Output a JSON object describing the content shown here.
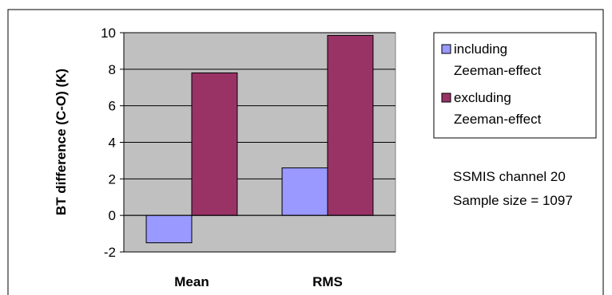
{
  "chart_data": {
    "type": "bar",
    "categories": [
      "Mean",
      "RMS"
    ],
    "series": [
      {
        "name": "including Zeeman-effect",
        "name_lines": [
          "including",
          "Zeeman-effect"
        ],
        "values": [
          -1.5,
          2.6
        ],
        "color": "#9999FF"
      },
      {
        "name": "excluding Zeeman-effect",
        "name_lines": [
          "excluding",
          "Zeeman-effect"
        ],
        "values": [
          7.8,
          9.85
        ],
        "color": "#993366"
      }
    ],
    "ylabel": "BT difference (C-O)  (K)",
    "xlabel": "",
    "ylim": [
      -2,
      10
    ],
    "yticks": [
      -2,
      0,
      2,
      4,
      6,
      8,
      10
    ],
    "plot_background": "#C0C0C0",
    "grid": true,
    "legend_position": "right",
    "annotations": [
      "SSMIS channel 20",
      "Sample size = 1097"
    ]
  }
}
